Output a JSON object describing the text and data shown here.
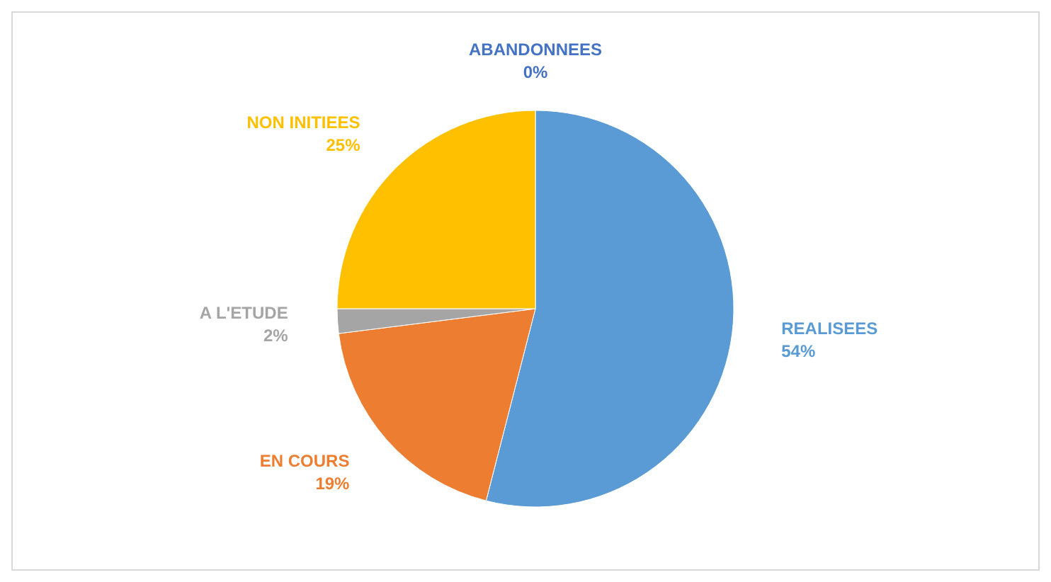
{
  "chart_data": {
    "type": "pie",
    "categories": [
      "ABANDONNEES",
      "REALISEES",
      "EN COURS",
      "A L'ETUDE",
      "NON INITIEES"
    ],
    "values": [
      0,
      54,
      19,
      2,
      25
    ],
    "colors": [
      "#4472c4",
      "#5b9bd5",
      "#ed7d31",
      "#a5a5a5",
      "#ffc000"
    ],
    "value_labels": [
      "0%",
      "54%",
      "19%",
      "2%",
      "25%"
    ]
  }
}
